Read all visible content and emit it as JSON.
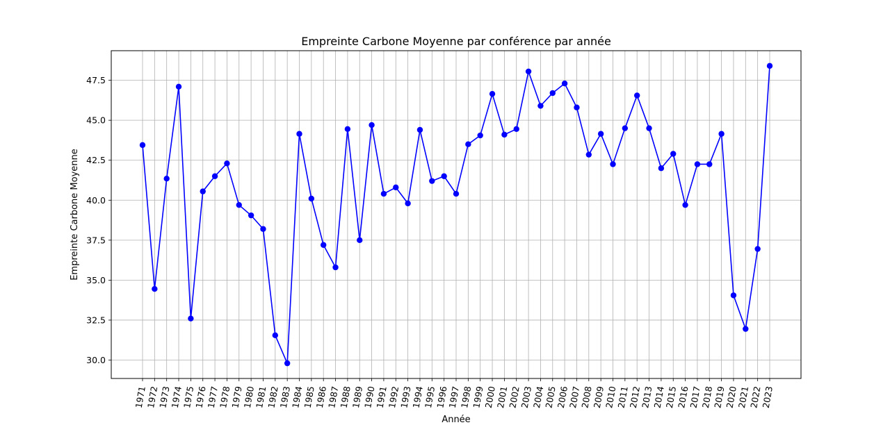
{
  "chart_data": {
    "type": "line",
    "title": "Empreinte Carbone Moyenne par conférence par année",
    "xlabel": "Année",
    "ylabel": "Empreinte Carbone Moyenne",
    "x": [
      1971,
      1972,
      1973,
      1974,
      1975,
      1976,
      1977,
      1978,
      1979,
      1980,
      1981,
      1982,
      1983,
      1984,
      1985,
      1986,
      1987,
      1988,
      1989,
      1990,
      1991,
      1992,
      1993,
      1994,
      1995,
      1996,
      1997,
      1998,
      1999,
      2000,
      2001,
      2002,
      2003,
      2004,
      2005,
      2006,
      2007,
      2008,
      2009,
      2010,
      2011,
      2012,
      2013,
      2014,
      2015,
      2016,
      2017,
      2018,
      2019,
      2020,
      2021,
      2022,
      2023
    ],
    "series": [
      {
        "values": [
          43.45,
          34.45,
          41.35,
          47.1,
          32.6,
          40.55,
          41.5,
          42.3,
          39.7,
          39.05,
          38.2,
          31.55,
          29.8,
          44.15,
          40.1,
          37.2,
          35.8,
          44.45,
          37.5,
          44.7,
          40.4,
          40.8,
          39.8,
          44.4,
          41.2,
          41.5,
          40.4,
          43.5,
          44.05,
          46.65,
          44.1,
          44.45,
          48.05,
          45.9,
          46.7,
          47.3,
          45.8,
          42.85,
          44.15,
          42.25,
          44.5,
          46.55,
          44.5,
          42.0,
          42.9,
          39.7,
          42.25,
          42.25,
          44.15,
          34.05,
          31.95,
          36.95,
          48.4
        ],
        "color": "#0000ff"
      }
    ],
    "ylim": [
      28.85,
      49.35
    ],
    "yticks": [
      "30.0",
      "32.5",
      "35.0",
      "37.5",
      "40.0",
      "42.5",
      "45.0",
      "47.5"
    ],
    "grid": true,
    "marker": "circle"
  }
}
